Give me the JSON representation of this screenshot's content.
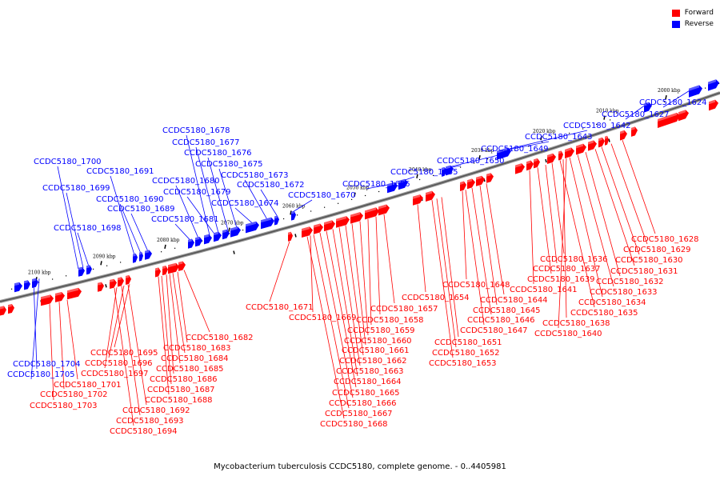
{
  "caption": "Mycobacterium tuberculosis CCDC5180, complete genome. - 0..4405981",
  "legend": [
    {
      "label": "Forward",
      "color": "#ff0000"
    },
    {
      "label": "Reverse",
      "color": "#0000ff"
    }
  ],
  "colors": {
    "forward": "#ff0000",
    "reverse": "#0000ff",
    "backbone": "#808080"
  },
  "ticks": [
    "2100 kbp",
    "2090 kbp",
    "2080 kbp",
    "2070 kbp",
    "2060 kbp",
    "2050 kbp",
    "2040 kbp",
    "2030 kbp",
    "2020 kbp",
    "2010 kbp",
    "2000 kbp"
  ],
  "reverse_labels": [
    "CCDC5180_1624",
    "CCDC5180_1627",
    "CCDC5180_1642",
    "CCDC5180_1643",
    "CCDC5180_1649",
    "CCDC5180_1650",
    "CCDC5180_1655",
    "CCDC5180_1656",
    "CCDC5180_1670",
    "CCDC5180_1672",
    "CCDC5180_1673",
    "CCDC5180_1674",
    "CCDC5180_1675",
    "CCDC5180_1676",
    "CCDC5180_1677",
    "CCDC5180_1678",
    "CCDC5180_1679",
    "CCDC5180_1680",
    "CCDC5180_1681",
    "CCDC5180_1689",
    "CCDC5180_1690",
    "CCDC5180_1691",
    "CCDC5180_1698",
    "CCDC5180_1699",
    "CCDC5180_1700",
    "CCDC5180_1704",
    "CCDC5180_1705"
  ],
  "forward_labels": [
    "CCDC5180_1628",
    "CCDC5180_1629",
    "CCDC5180_1630",
    "CCDC5180_1631",
    "CCDC5180_1632",
    "CCDC5180_1633",
    "CCDC5180_1634",
    "CCDC5180_1635",
    "CCDC5180_1636",
    "CCDC5180_1637",
    "CCDC5180_1638",
    "CCDC5180_1639",
    "CCDC5180_1640",
    "CCDC5180_1641",
    "CCDC5180_1644",
    "CCDC5180_1645",
    "CCDC5180_1646",
    "CCDC5180_1647",
    "CCDC5180_1648",
    "CCDC5180_1651",
    "CCDC5180_1652",
    "CCDC5180_1653",
    "CCDC5180_1654",
    "CCDC5180_1657",
    "CCDC5180_1658",
    "CCDC5180_1659",
    "CCDC5180_1660",
    "CCDC5180_1661",
    "CCDC5180_1662",
    "CCDC5180_1663",
    "CCDC5180_1664",
    "CCDC5180_1665",
    "CCDC5180_1666",
    "CCDC5180_1667",
    "CCDC5180_1668",
    "CCDC5180_1669",
    "CCDC5180_1671",
    "CCDC5180_1682",
    "CCDC5180_1683",
    "CCDC5180_1684",
    "CCDC5180_1685",
    "CCDC5180_1686",
    "CCDC5180_1687",
    "CCDC5180_1688",
    "CCDC5180_1692",
    "CCDC5180_1693",
    "CCDC5180_1694",
    "CCDC5180_1695",
    "CCDC5180_1696",
    "CCDC5180_1697",
    "CCDC5180_1701",
    "CCDC5180_1702",
    "CCDC5180_1703"
  ]
}
